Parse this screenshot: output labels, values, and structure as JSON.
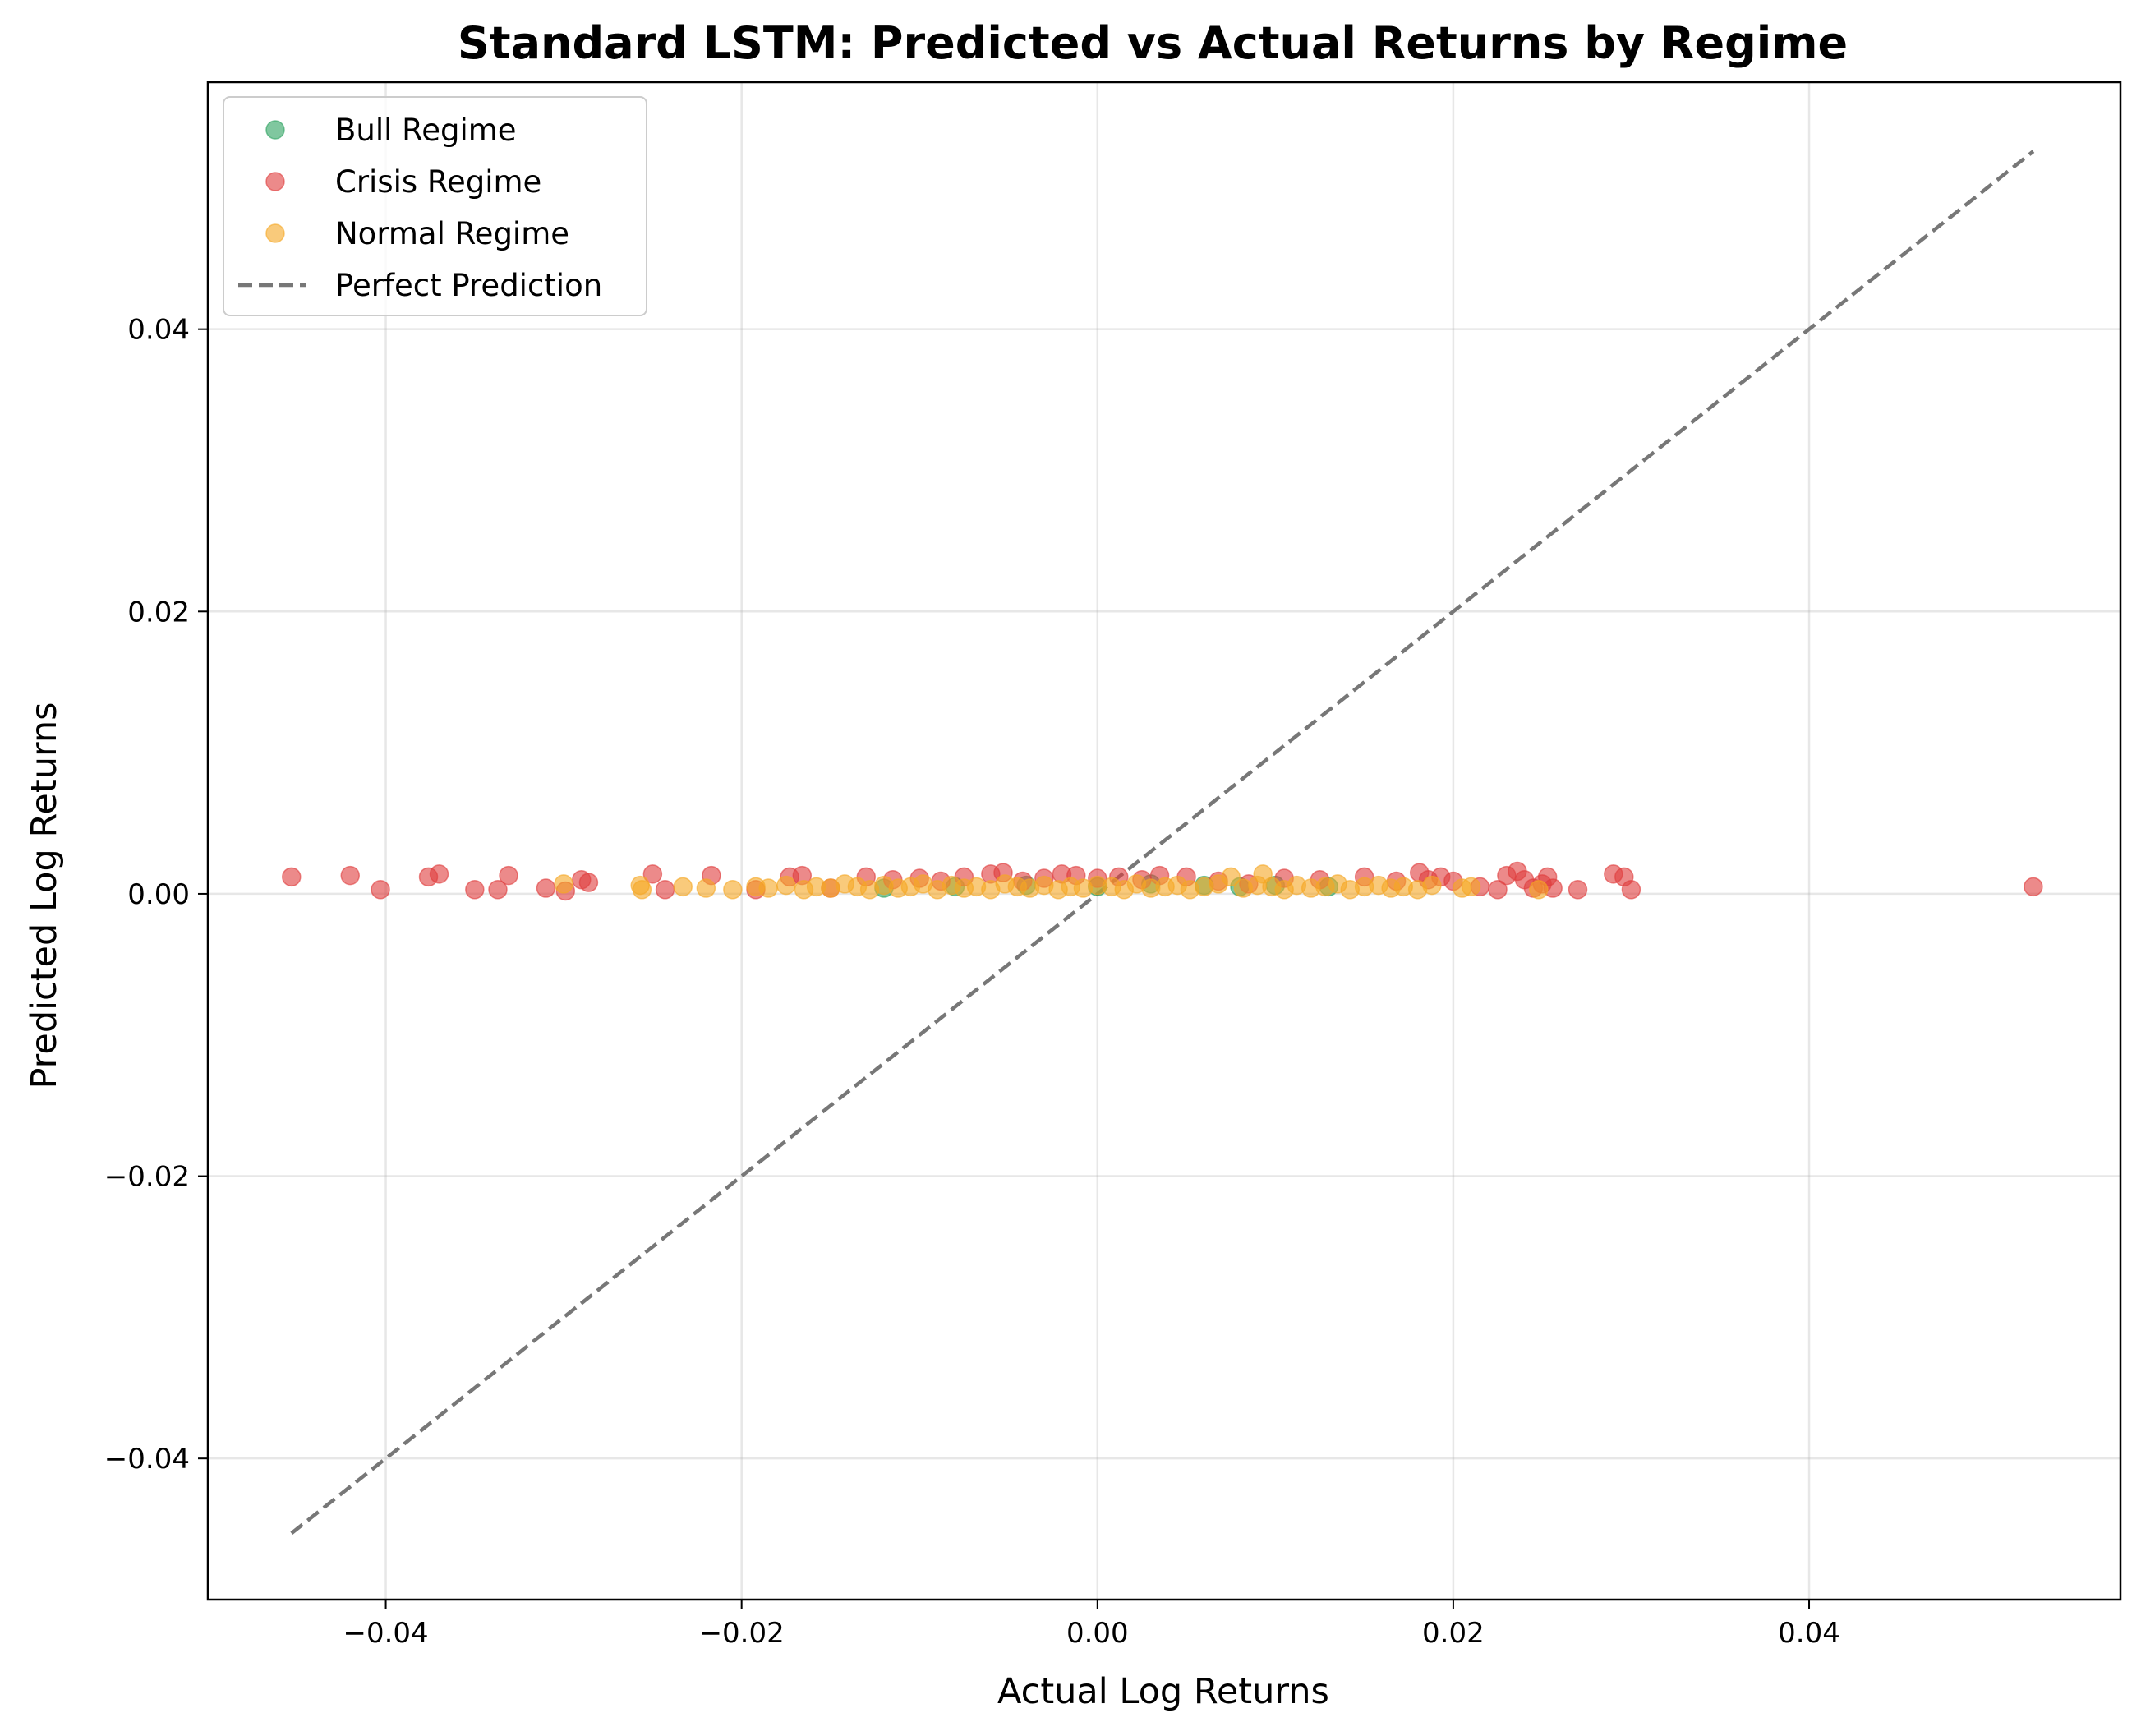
{
  "chart_data": {
    "type": "scatter",
    "title": "Standard LSTM: Predicted vs Actual Returns by Regime",
    "xlabel": "Actual Log Returns",
    "ylabel": "Predicted Log Returns",
    "xlim": [
      -0.05,
      0.0575
    ],
    "ylim": [
      -0.05,
      0.0575
    ],
    "x_ticks": [
      -0.04,
      -0.02,
      0.0,
      0.02,
      0.04
    ],
    "x_tick_labels": [
      "−0.04",
      "−0.02",
      "0.00",
      "0.02",
      "0.04"
    ],
    "y_ticks": [
      -0.04,
      -0.02,
      0.0,
      0.02,
      0.04
    ],
    "y_tick_labels": [
      "−0.04",
      "−0.02",
      "0.00",
      "0.02",
      "0.04"
    ],
    "grid": true,
    "legend_position": "top-left",
    "series": [
      {
        "name": "Bull Regime",
        "color": "#2ca25f",
        "marker": "circle",
        "x": [
          -0.012,
          -0.008,
          -0.004,
          0.0,
          0.003,
          0.006,
          0.008,
          0.01,
          0.013
        ],
        "y": [
          0.0004,
          0.0005,
          0.0006,
          0.0005,
          0.0007,
          0.0006,
          0.0005,
          0.0006,
          0.0005
        ]
      },
      {
        "name": "Crisis Regime",
        "color": "#e03c3c",
        "marker": "circle",
        "x": [
          -0.0453,
          -0.042,
          -0.0403,
          -0.0376,
          -0.037,
          -0.035,
          -0.0337,
          -0.0331,
          -0.031,
          -0.0299,
          -0.029,
          -0.0286,
          -0.025,
          -0.0243,
          -0.0217,
          -0.0192,
          -0.0173,
          -0.0166,
          -0.015,
          -0.013,
          -0.0115,
          -0.01,
          -0.0088,
          -0.0075,
          -0.006,
          -0.0053,
          -0.0042,
          -0.003,
          -0.002,
          -0.0012,
          0.0,
          0.0012,
          0.0025,
          0.0035,
          0.005,
          0.0068,
          0.0085,
          0.0105,
          0.0125,
          0.015,
          0.0168,
          0.0181,
          0.0186,
          0.0193,
          0.02,
          0.0215,
          0.0225,
          0.023,
          0.0236,
          0.024,
          0.0245,
          0.025,
          0.0253,
          0.0256,
          0.027,
          0.029,
          0.0296,
          0.03,
          0.0526
        ],
        "y": [
          0.0012,
          0.0013,
          0.0003,
          0.0012,
          0.0014,
          0.0003,
          0.0003,
          0.0013,
          0.0004,
          0.0002,
          0.001,
          0.0008,
          0.0014,
          0.0003,
          0.0013,
          0.0003,
          0.0012,
          0.0013,
          0.0004,
          0.0012,
          0.001,
          0.0011,
          0.0009,
          0.0012,
          0.0014,
          0.0015,
          0.0009,
          0.0011,
          0.0014,
          0.0013,
          0.0011,
          0.0012,
          0.001,
          0.0013,
          0.0012,
          0.0009,
          0.0007,
          0.0011,
          0.001,
          0.0012,
          0.0009,
          0.0015,
          0.001,
          0.0012,
          0.0009,
          0.0005,
          0.0003,
          0.0013,
          0.0016,
          0.001,
          0.0004,
          0.0007,
          0.0012,
          0.0004,
          0.0003,
          0.0014,
          0.0012,
          0.0003,
          0.0005
        ]
      },
      {
        "name": "Normal Regime",
        "color": "#f5a623",
        "marker": "circle",
        "x": [
          -0.03,
          -0.0257,
          -0.0256,
          -0.0233,
          -0.022,
          -0.0205,
          -0.0192,
          -0.0185,
          -0.0175,
          -0.0165,
          -0.0158,
          -0.015,
          -0.0142,
          -0.0135,
          -0.0128,
          -0.012,
          -0.0112,
          -0.0105,
          -0.0098,
          -0.009,
          -0.0082,
          -0.0075,
          -0.0068,
          -0.006,
          -0.0052,
          -0.0045,
          -0.0038,
          -0.003,
          -0.0022,
          -0.0015,
          -0.0008,
          0.0,
          0.0008,
          0.0015,
          0.0022,
          0.003,
          0.0038,
          0.0045,
          0.0052,
          0.006,
          0.0068,
          0.0075,
          0.0082,
          0.009,
          0.0093,
          0.0098,
          0.0105,
          0.0112,
          0.012,
          0.0128,
          0.0135,
          0.0142,
          0.015,
          0.0158,
          0.0165,
          0.0172,
          0.018,
          0.0188,
          0.0205,
          0.021,
          0.0248
        ],
        "y": [
          0.0007,
          0.0006,
          0.0003,
          0.0005,
          0.0004,
          0.0003,
          0.0005,
          0.0004,
          0.0006,
          0.0003,
          0.0005,
          0.0004,
          0.0007,
          0.0005,
          0.0003,
          0.0006,
          0.0004,
          0.0005,
          0.0007,
          0.0003,
          0.0006,
          0.0004,
          0.0005,
          0.0003,
          0.0007,
          0.0005,
          0.0004,
          0.0006,
          0.0003,
          0.0005,
          0.0004,
          0.0006,
          0.0005,
          0.0003,
          0.0007,
          0.0004,
          0.0005,
          0.0006,
          0.0003,
          0.0005,
          0.0007,
          0.0012,
          0.0004,
          0.0006,
          0.0014,
          0.0005,
          0.0003,
          0.0006,
          0.0004,
          0.0005,
          0.0007,
          0.0003,
          0.0005,
          0.0006,
          0.0004,
          0.0005,
          0.0003,
          0.0006,
          0.0004,
          0.0005,
          0.0003
        ]
      }
    ],
    "reference_line": {
      "name": "Perfect Prediction",
      "color": "#777777",
      "style": "dashed",
      "x": [
        -0.0453,
        0.0526
      ],
      "y": [
        -0.0453,
        0.0526
      ]
    }
  }
}
